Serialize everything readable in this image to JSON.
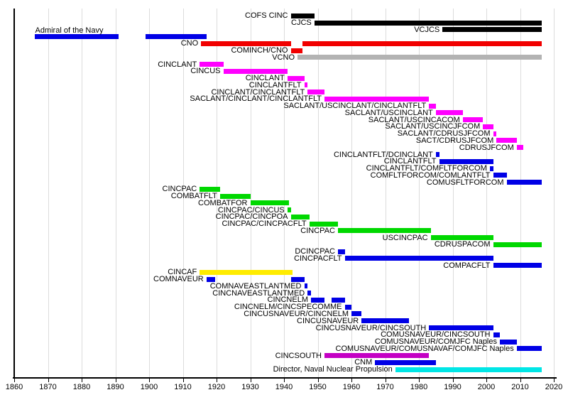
{
  "chart_data": {
    "type": "bar",
    "variant": "gantt-timeline",
    "x_axis": {
      "min": 1860,
      "max": 2020,
      "tick_step": 10,
      "tick_labels": [
        "1860",
        "1870",
        "1880",
        "1890",
        "1900",
        "1910",
        "1920",
        "1930",
        "1940",
        "1950",
        "1960",
        "1970",
        "1980",
        "1990",
        "2000",
        "2010",
        "2020"
      ],
      "grid": true
    },
    "legend": "none",
    "palette": {
      "black": "#000000",
      "blue": "#0000e6",
      "red": "#f10000",
      "gray": "#b3b3b3",
      "magenta": "#ff00ff",
      "green": "#00d800",
      "yellow": "#ffec00",
      "purple": "#c400c4",
      "cyan": "#00e6e6"
    },
    "rows": [
      {
        "label": "COFS CINC",
        "color": "black",
        "segments": [
          [
            1942,
            1949
          ]
        ]
      },
      {
        "label": "CJCS",
        "color": "black",
        "segments": [
          [
            1949,
            2016.5
          ]
        ]
      },
      {
        "label": "VCJCS",
        "color": "black",
        "segments": [
          [
            1987,
            2016.5
          ]
        ]
      },
      {
        "label": "Admiral of the Navy",
        "color": "blue",
        "segments": [
          [
            1866,
            1891
          ],
          [
            1899,
            1917
          ]
        ],
        "label_position": "above"
      },
      {
        "label": "CNO",
        "color": "red",
        "segments": [
          [
            1915.4,
            1942.2
          ],
          [
            1945.5,
            2016.5
          ]
        ]
      },
      {
        "label": "COMINCH/CNO",
        "color": "red",
        "segments": [
          [
            1942,
            1945.5
          ]
        ]
      },
      {
        "label": "VCNO",
        "color": "gray",
        "segments": [
          [
            1944,
            2016.5
          ]
        ]
      },
      {
        "label": "CINCLANT",
        "color": "magenta",
        "segments": [
          [
            1915,
            1922
          ]
        ]
      },
      {
        "label": "CINCUS",
        "color": "magenta",
        "segments": [
          [
            1922,
            1941
          ]
        ]
      },
      {
        "label": "CINCLANT",
        "color": "magenta",
        "segments": [
          [
            1941,
            1946
          ]
        ]
      },
      {
        "label": "CINCLANTFLT",
        "color": "magenta",
        "segments": [
          [
            1946,
            1947
          ]
        ]
      },
      {
        "label": "CINCLANT/CINCLANTFLT",
        "color": "magenta",
        "segments": [
          [
            1947,
            1952
          ]
        ]
      },
      {
        "label": "SACLANT/CINCLANT/CINCLANTFLT",
        "color": "magenta",
        "segments": [
          [
            1952,
            1983
          ]
        ]
      },
      {
        "label": "SACLANT/USCINCLANT/CINCLANTFLT",
        "color": "magenta",
        "segments": [
          [
            1983,
            1985
          ]
        ]
      },
      {
        "label": "SACLANT/USCINCLANT",
        "color": "magenta",
        "segments": [
          [
            1985,
            1993
          ]
        ]
      },
      {
        "label": "SACLANT/USCINCACOM",
        "color": "magenta",
        "segments": [
          [
            1993,
            1999
          ]
        ]
      },
      {
        "label": "SACLANT/USCINCJFCOM",
        "color": "magenta",
        "segments": [
          [
            1999,
            2002
          ]
        ]
      },
      {
        "label": "SACLANT/CDRUSJFCOM",
        "color": "magenta",
        "segments": [
          [
            2002,
            2003
          ]
        ]
      },
      {
        "label": "SACT/CDRUSJFCOM",
        "color": "magenta",
        "segments": [
          [
            2003,
            2009
          ]
        ]
      },
      {
        "label": "CDRUSJFCOM",
        "color": "magenta",
        "segments": [
          [
            2009,
            2011
          ]
        ]
      },
      {
        "label": "CINCLANTFLT/DCINCLANT",
        "color": "blue",
        "segments": [
          [
            1985,
            1986
          ]
        ]
      },
      {
        "label": "CINCLANTFLT",
        "color": "blue",
        "segments": [
          [
            1986,
            2002
          ]
        ]
      },
      {
        "label": "CINCLANTFLT/COMFLTFORCOM",
        "color": "blue",
        "segments": [
          [
            2001,
            2002
          ]
        ]
      },
      {
        "label": "COMFLTFORCOM/COMLANTFLT",
        "color": "blue",
        "segments": [
          [
            2002,
            2006
          ]
        ]
      },
      {
        "label": "COMUSFLTFORCOM",
        "color": "blue",
        "segments": [
          [
            2006,
            2016.5
          ]
        ]
      },
      {
        "label": "CINCPAC",
        "color": "green",
        "segments": [
          [
            1915,
            1921
          ]
        ]
      },
      {
        "label": "COMBATFLT",
        "color": "green",
        "segments": [
          [
            1921,
            1930
          ]
        ]
      },
      {
        "label": "COMBATFOR",
        "color": "green",
        "segments": [
          [
            1930,
            1941.5
          ]
        ]
      },
      {
        "label": "CINCPAC/CINCUS",
        "color": "green",
        "segments": [
          [
            1941,
            1942
          ]
        ]
      },
      {
        "label": "CINCPAC/CINCPOA",
        "color": "green",
        "segments": [
          [
            1942,
            1947.5
          ]
        ]
      },
      {
        "label": "CINCPAC/CINCPACFLT",
        "color": "green",
        "segments": [
          [
            1947.5,
            1956
          ]
        ]
      },
      {
        "label": "CINCPAC",
        "color": "green",
        "segments": [
          [
            1956,
            1983.5
          ]
        ]
      },
      {
        "label": "USCINCPAC",
        "color": "green",
        "segments": [
          [
            1983.5,
            2002
          ]
        ]
      },
      {
        "label": "CDRUSPACOM",
        "color": "green",
        "segments": [
          [
            2002,
            2016.5
          ]
        ]
      },
      {
        "label": "DCINCPAC",
        "color": "blue",
        "segments": [
          [
            1956,
            1958
          ]
        ]
      },
      {
        "label": "CINCPACFLT",
        "color": "blue",
        "segments": [
          [
            1958,
            2002
          ]
        ]
      },
      {
        "label": "COMPACFLT",
        "color": "blue",
        "segments": [
          [
            2002,
            2016.5
          ]
        ]
      },
      {
        "label": "CINCAF",
        "color": "yellow",
        "segments": [
          [
            1915,
            1942.5
          ]
        ]
      },
      {
        "label": "COMNAVEUR",
        "color": "blue",
        "segments": [
          [
            1917,
            1919.5
          ],
          [
            1942,
            1946
          ]
        ]
      },
      {
        "label": "COMNAVEASTLANTMED",
        "color": "blue",
        "segments": [
          [
            1946,
            1947
          ]
        ]
      },
      {
        "label": "CINCNAVEASTLANTMED",
        "color": "blue",
        "segments": [
          [
            1947,
            1948
          ]
        ]
      },
      {
        "label": "CINCNELM",
        "color": "blue",
        "segments": [
          [
            1948,
            1952
          ],
          [
            1954,
            1958
          ]
        ]
      },
      {
        "label": "CINCNELM/CINCSPECOMME",
        "color": "blue",
        "segments": [
          [
            1958,
            1960
          ]
        ]
      },
      {
        "label": "CINCUSNAVEUR/CINCNELM",
        "color": "blue",
        "segments": [
          [
            1960,
            1963
          ]
        ]
      },
      {
        "label": "CINCUSNAVEUR",
        "color": "blue",
        "segments": [
          [
            1963,
            1977
          ]
        ]
      },
      {
        "label": "CINCUSNAVEUR/CINCSOUTH",
        "color": "blue",
        "segments": [
          [
            1983,
            2002
          ]
        ]
      },
      {
        "label": "COMUSNAVEUR/CINCSOUTH",
        "color": "blue",
        "segments": [
          [
            2002,
            2004
          ]
        ]
      },
      {
        "label": "COMUSNAVEUR/COMJFC Naples",
        "color": "blue",
        "segments": [
          [
            2004,
            2009
          ]
        ]
      },
      {
        "label": "COMUSNAVEUR/COMUSNAVAF/COMJFC Naples",
        "color": "blue",
        "segments": [
          [
            2009,
            2016.5
          ]
        ]
      },
      {
        "label": "CINCSOUTH",
        "color": "purple",
        "segments": [
          [
            1952,
            1983
          ]
        ]
      },
      {
        "label": "CNM",
        "color": "blue",
        "segments": [
          [
            1967,
            1985
          ]
        ]
      },
      {
        "label": "Director, Naval Nuclear Propulsion",
        "color": "cyan",
        "segments": [
          [
            1973,
            2016.5
          ]
        ]
      }
    ]
  }
}
